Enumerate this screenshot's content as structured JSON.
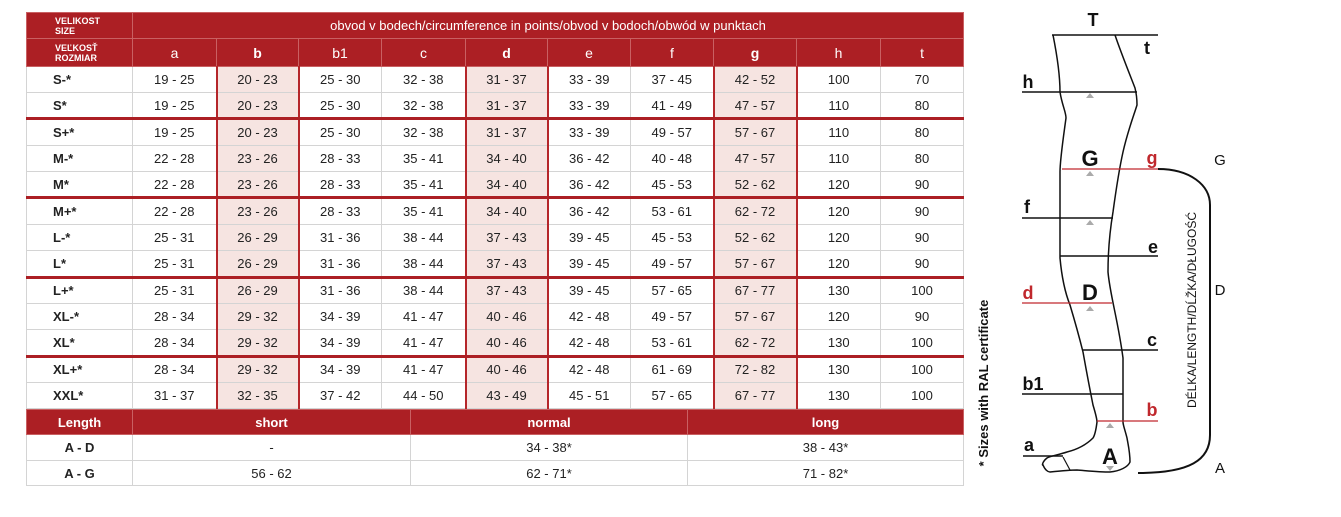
{
  "colors": {
    "accent": "#ac1f24",
    "highlight_bg": "#f6e4e1",
    "measure_red": "#c0282d"
  },
  "header": {
    "size_label_1": "VELIKOST",
    "size_label_2": "SIZE",
    "size_label_3": "VEĽKOSŤ",
    "size_label_4": "ROZMIAR",
    "title": "obvod v bodech/circumference in points/obvod v bodoch/obwód w punktach",
    "columns": [
      {
        "label": "a",
        "highlight": false
      },
      {
        "label": "b",
        "highlight": true
      },
      {
        "label": "b1",
        "highlight": false
      },
      {
        "label": "c",
        "highlight": false
      },
      {
        "label": "d",
        "highlight": true
      },
      {
        "label": "e",
        "highlight": false
      },
      {
        "label": "f",
        "highlight": false
      },
      {
        "label": "g",
        "highlight": true
      },
      {
        "label": "h",
        "highlight": false
      },
      {
        "label": "t",
        "highlight": false
      }
    ]
  },
  "rows": [
    {
      "size": "S-*",
      "values": [
        "19 - 25",
        "20 - 23",
        "25 - 30",
        "32 - 38",
        "31 - 37",
        "33 - 39",
        "37 - 45",
        "42 - 52",
        "100",
        "70"
      ],
      "group_end": false
    },
    {
      "size": "S*",
      "values": [
        "19 - 25",
        "20 - 23",
        "25 - 30",
        "32 - 38",
        "31 - 37",
        "33 - 39",
        "41 - 49",
        "47 - 57",
        "110",
        "80"
      ],
      "group_end": true
    },
    {
      "size": "S+*",
      "values": [
        "19 - 25",
        "20 - 23",
        "25 - 30",
        "32 - 38",
        "31 - 37",
        "33 - 39",
        "49 - 57",
        "57 - 67",
        "110",
        "80"
      ],
      "group_end": false
    },
    {
      "size": "M-*",
      "values": [
        "22 - 28",
        "23 - 26",
        "28 - 33",
        "35 - 41",
        "34 - 40",
        "36 - 42",
        "40 - 48",
        "47 - 57",
        "110",
        "80"
      ],
      "group_end": false
    },
    {
      "size": "M*",
      "values": [
        "22 - 28",
        "23 - 26",
        "28 - 33",
        "35 - 41",
        "34 - 40",
        "36 - 42",
        "45 - 53",
        "52 - 62",
        "120",
        "90"
      ],
      "group_end": true
    },
    {
      "size": "M+*",
      "values": [
        "22 - 28",
        "23 - 26",
        "28 - 33",
        "35 - 41",
        "34 - 40",
        "36 - 42",
        "53 - 61",
        "62 - 72",
        "120",
        "90"
      ],
      "group_end": false
    },
    {
      "size": "L-*",
      "values": [
        "25 - 31",
        "26 - 29",
        "31 - 36",
        "38 - 44",
        "37 - 43",
        "39 - 45",
        "45 - 53",
        "52 - 62",
        "120",
        "90"
      ],
      "group_end": false
    },
    {
      "size": "L*",
      "values": [
        "25 - 31",
        "26 - 29",
        "31 - 36",
        "38 - 44",
        "37 - 43",
        "39 - 45",
        "49 - 57",
        "57 - 67",
        "120",
        "90"
      ],
      "group_end": true
    },
    {
      "size": "L+*",
      "values": [
        "25 - 31",
        "26 - 29",
        "31 - 36",
        "38 - 44",
        "37 - 43",
        "39 - 45",
        "57 - 65",
        "67 - 77",
        "130",
        "100"
      ],
      "group_end": false
    },
    {
      "size": "XL-*",
      "values": [
        "28 - 34",
        "29 - 32",
        "34 - 39",
        "41 - 47",
        "40 - 46",
        "42 - 48",
        "49 - 57",
        "57 - 67",
        "120",
        "90"
      ],
      "group_end": false
    },
    {
      "size": "XL*",
      "values": [
        "28 - 34",
        "29 - 32",
        "34 - 39",
        "41 - 47",
        "40 - 46",
        "42 - 48",
        "53 - 61",
        "62 - 72",
        "130",
        "100"
      ],
      "group_end": true
    },
    {
      "size": "XL+*",
      "values": [
        "28 - 34",
        "29 - 32",
        "34 - 39",
        "41 - 47",
        "40 - 46",
        "42 - 48",
        "61 - 69",
        "72 - 82",
        "130",
        "100"
      ],
      "group_end": false
    },
    {
      "size": "XXL*",
      "values": [
        "31 - 37",
        "32 - 35",
        "37 - 42",
        "44 - 50",
        "43 - 49",
        "45 - 51",
        "57 - 65",
        "67 - 77",
        "130",
        "100"
      ],
      "group_end": false
    }
  ],
  "length_table": {
    "headers": [
      "Length",
      "short",
      "normal",
      "long"
    ],
    "rows": [
      {
        "label": "A - D",
        "values": [
          "-",
          "34 - 38*",
          "38 - 43*"
        ]
      },
      {
        "label": "A - G",
        "values": [
          "56 - 62",
          "62 - 71*",
          "71 - 82*"
        ]
      }
    ]
  },
  "diagram": {
    "note": "* Sizes with RAL certificate",
    "length_label": "DÉLKA/LENGTH/DĹŽKA/DŁUGOŚĆ",
    "labels": {
      "T": "T",
      "t": "t",
      "h": "h",
      "G": "G",
      "g": "g",
      "f": "f",
      "e": "e",
      "d": "d",
      "D": "D",
      "c": "c",
      "b1": "b1",
      "b": "b",
      "a": "a",
      "A": "A"
    },
    "bracket_labels": {
      "G": "G",
      "D": "D",
      "A": "A"
    }
  }
}
